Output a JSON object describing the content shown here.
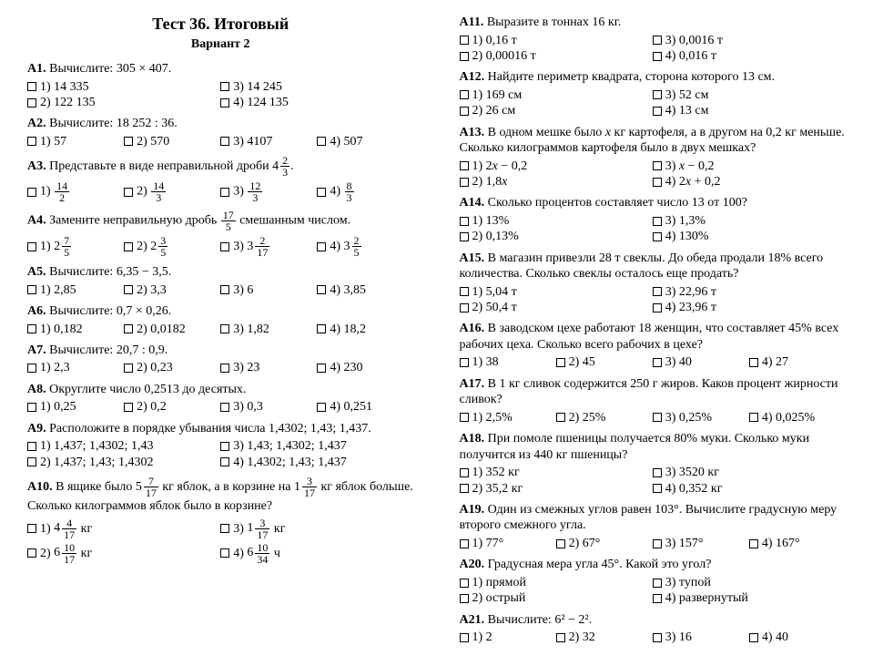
{
  "title": "Тест 36. Итоговый",
  "subtitle": "Вариант 2",
  "left": [
    {
      "id": "A1",
      "text": "Вычислите: 305 × 407.",
      "layout": "two",
      "opts": [
        "1) 14 335",
        "3) 14 245",
        "2) 122 135",
        "4) 124 135"
      ]
    },
    {
      "id": "A2",
      "text": "Вычислите: 18 252 : 36.",
      "layout": "four",
      "opts": [
        "1) 57",
        "2) 570",
        "3) 4107",
        "4) 507"
      ]
    },
    {
      "id": "A3",
      "text": "Представьте в виде неправильной дроби {m:4:2:3}.",
      "layout": "four",
      "opts": [
        "1) {f:14:2}",
        "2) {f:14:3}",
        "3) {f:12:3}",
        "4) {f:8:3}"
      ]
    },
    {
      "id": "A4",
      "text": "Замените неправильную дробь {f:17:5} смешанным числом.",
      "layout": "four",
      "opts": [
        "1) {m:2:7:5}",
        "2) {m:2:3:5}",
        "3) {m:3:2:17}",
        "4) {m:3:2:5}"
      ]
    },
    {
      "id": "A5",
      "text": "Вычислите: 6,35 − 3,5.",
      "layout": "four",
      "opts": [
        "1) 2,85",
        "2) 3,3",
        "3) 6",
        "4) 3,85"
      ]
    },
    {
      "id": "A6",
      "text": "Вычислите: 0,7 × 0,26.",
      "layout": "four",
      "opts": [
        "1) 0,182",
        "2) 0,0182",
        "3) 1,82",
        "4) 18,2"
      ]
    },
    {
      "id": "A7",
      "text": "Вычислите: 20,7 : 0,9.",
      "layout": "four",
      "opts": [
        "1) 2,3",
        "2) 0,23",
        "3) 23",
        "4) 230"
      ]
    },
    {
      "id": "A8",
      "text": "Округлите число 0,2513 до десятых.",
      "layout": "four",
      "opts": [
        "1) 0,25",
        "2) 0,2",
        "3) 0,3",
        "4) 0,251"
      ]
    },
    {
      "id": "A9",
      "text": "Расположите в порядке убывания числа 1,4302; 1,43; 1,437.",
      "layout": "two",
      "opts": [
        "1) 1,437; 1,4302; 1,43",
        "3) 1,43; 1,4302; 1,437",
        "2) 1,437; 1,43; 1,4302",
        "4) 1,4302; 1,43; 1,437"
      ]
    },
    {
      "id": "A10",
      "text": "В ящике было {m:5:7:17} кг яблок, а в корзине на {m:1:3:17} кг яблок больше. Сколько килограммов яблок было в корзине?",
      "layout": "two",
      "opts": [
        "1) {m:4:4:17} кг",
        "3) {m:1:3:17} кг",
        "2) {m:6:10:17} кг",
        "4) {m:6:10:34} ч"
      ]
    }
  ],
  "right": [
    {
      "id": "A11",
      "text": "Выразите в тоннах 16 кг.",
      "layout": "two",
      "opts": [
        "1) 0,16 т",
        "3) 0,0016 т",
        "2) 0,00016 т",
        "4) 0,016 т"
      ]
    },
    {
      "id": "A12",
      "text": "Найдите периметр квадрата, сторона которого 13 см.",
      "layout": "two",
      "opts": [
        "1) 169 см",
        "3) 52 см",
        "2) 26 см",
        "4) 13 см"
      ]
    },
    {
      "id": "A13",
      "text": "В одном мешке было {i:x} кг картофеля, а в другом на 0,2 кг меньше. Сколько килограммов картофеля было в двух мешках?",
      "layout": "two",
      "opts": [
        "1) 2{i:x} − 0,2",
        "3) {i:x} − 0,2",
        "2) 1,8{i:x}",
        "4) 2{i:x} + 0,2"
      ]
    },
    {
      "id": "A14",
      "text": "Сколько процентов составляет число 13 от 100?",
      "layout": "two",
      "opts": [
        "1) 13%",
        "3) 1,3%",
        "2) 0,13%",
        "4) 130%"
      ]
    },
    {
      "id": "A15",
      "text": "В магазин привезли 28 т свеклы. До обеда продали 18% всего количества. Сколько свеклы осталось еще продать?",
      "layout": "two",
      "opts": [
        "1) 5,04 т",
        "3) 22,96 т",
        "2) 50,4 т",
        "4) 23,96 т"
      ]
    },
    {
      "id": "A16",
      "text": "В заводском цехе работают 18 женщин, что составляет 45% всех рабочих цеха. Сколько всего рабочих в цехе?",
      "layout": "four",
      "opts": [
        "1) 38",
        "2) 45",
        "3) 40",
        "4) 27"
      ]
    },
    {
      "id": "A17",
      "text": "В 1 кг сливок содержится 250 г жиров. Каков процент жирности сливок?",
      "layout": "four",
      "opts": [
        "1) 2,5%",
        "2) 25%",
        "3) 0,25%",
        "4) 0,025%"
      ]
    },
    {
      "id": "A18",
      "text": "При помоле пшеницы получается 80% муки. Сколько муки получится из 440 кг пшеницы?",
      "layout": "two",
      "opts": [
        "1) 352 кг",
        "3) 3520 кг",
        "2) 35,2 кг",
        "4) 0,352 кг"
      ]
    },
    {
      "id": "A19",
      "text": "Один из смежных углов равен 103°. Вычислите градусную меру второго смежного угла.",
      "layout": "four",
      "opts": [
        "1) 77°",
        "2) 67°",
        "3) 157°",
        "4) 167°"
      ]
    },
    {
      "id": "A20",
      "text": "Градусная мера угла 45°. Какой это угол?",
      "layout": "two",
      "opts": [
        "1) прямой",
        "3) тупой",
        "2) острый",
        "4) развернутый"
      ]
    },
    {
      "id": "A21",
      "text": "Вычислите: 6² − 2².",
      "layout": "four",
      "opts": [
        "1) 2",
        "2) 32",
        "3) 16",
        "4) 40"
      ]
    }
  ]
}
